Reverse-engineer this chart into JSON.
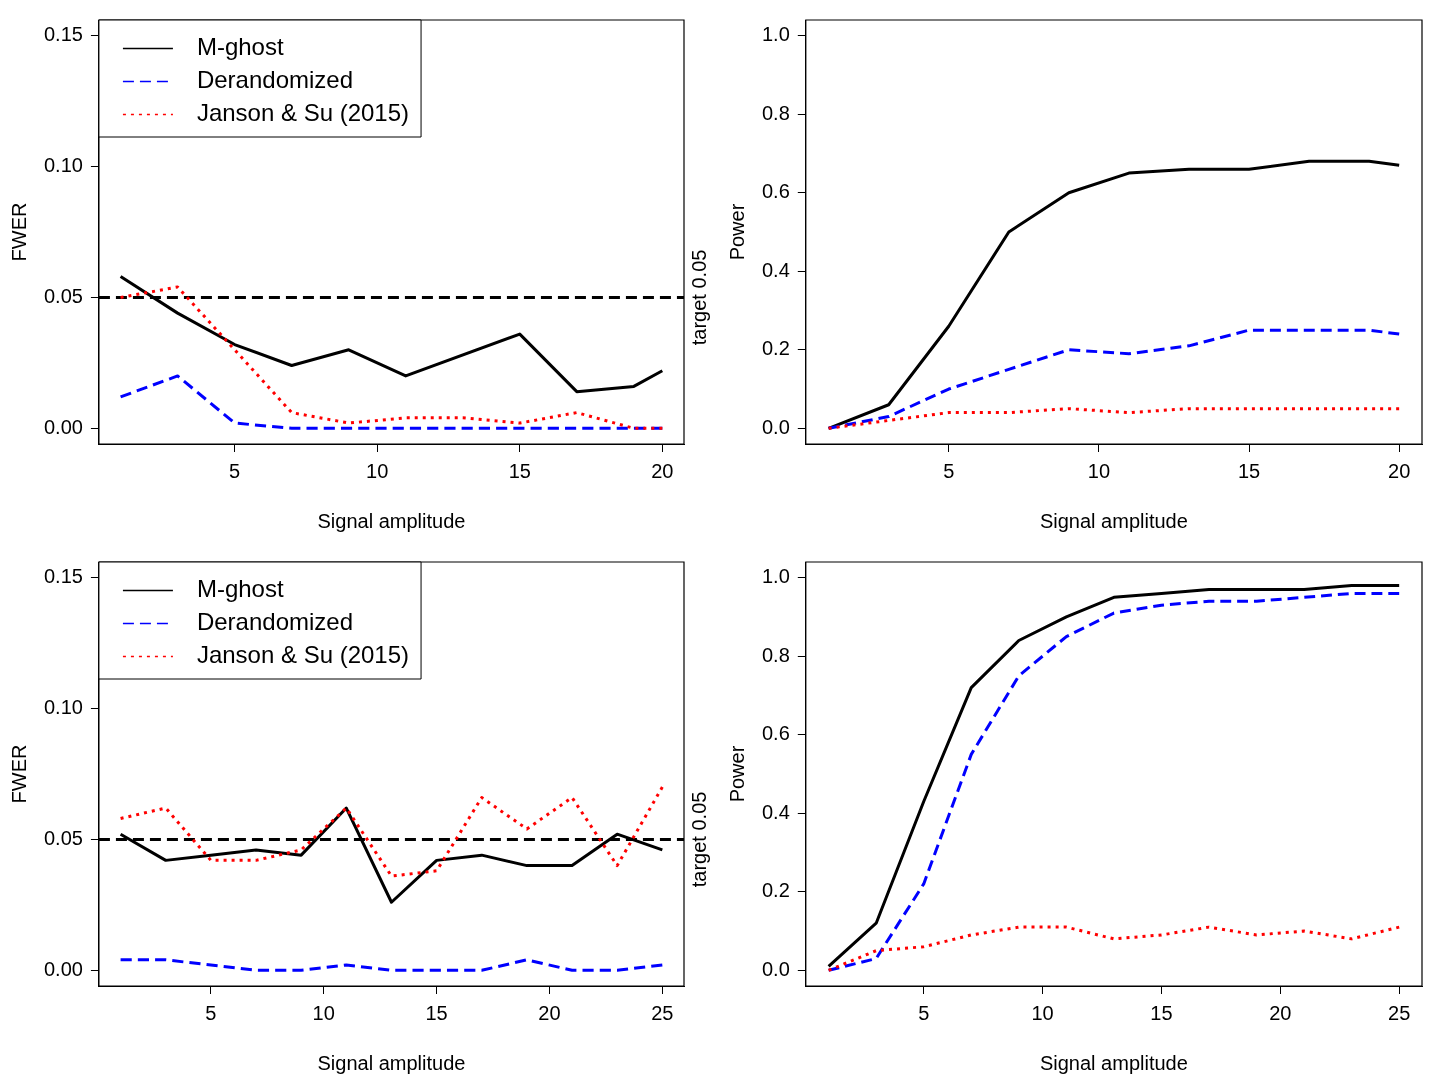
{
  "chart_data": [
    {
      "type": "line",
      "xlabel": "Signal amplitude",
      "ylabel": "FWER",
      "legend": "top left",
      "marker": "none",
      "xlim": [
        0.24,
        20.76
      ],
      "xticks": [
        5,
        10,
        15,
        20
      ],
      "ylim": [
        -0.006,
        0.156
      ],
      "yticks": [
        {
          "value": 0,
          "label": "0.00"
        },
        {
          "value": 0.05,
          "label": "0.05"
        },
        {
          "value": 0.1,
          "label": "0.10"
        },
        {
          "value": 0.15,
          "label": "0.15"
        }
      ],
      "ref_lines": [
        {
          "axis": "y",
          "value": 0.05,
          "label": "target 0.05",
          "color": "#000000",
          "line_style": "dashed"
        }
      ],
      "series": [
        {
          "name": "M-ghost",
          "color": "#000000",
          "line_style": "solid",
          "x": [
            1,
            3,
            5,
            7,
            9,
            11,
            15,
            17,
            19,
            20
          ],
          "values": [
            0.058,
            0.044,
            0.032,
            0.024,
            0.03,
            0.02,
            0.036,
            0.014,
            0.016,
            0.022
          ]
        },
        {
          "name": "Derandomized",
          "color": "#0000ff",
          "line_style": "dashed",
          "x": [
            1,
            3,
            5,
            7,
            9,
            11,
            13,
            15,
            17,
            19,
            20
          ],
          "values": [
            0.012,
            0.02,
            0.002,
            0,
            0,
            0,
            0,
            0,
            0,
            0,
            0
          ]
        },
        {
          "name": "Janson & Su (2015)",
          "color": "#ff0000",
          "line_style": "dotted",
          "x": [
            1,
            3,
            5,
            7,
            9,
            11,
            13,
            15,
            17,
            19,
            20
          ],
          "values": [
            0.05,
            0.054,
            0.03,
            0.006,
            0.002,
            0.004,
            0.004,
            0.002,
            0.006,
            0,
            0
          ]
        }
      ]
    },
    {
      "type": "line",
      "xlabel": "Signal amplitude",
      "ylabel": "Power",
      "marker": "none",
      "xlim": [
        0.24,
        20.76
      ],
      "xticks": [
        5,
        10,
        15,
        20
      ],
      "ylim": [
        -0.04,
        1.04
      ],
      "yticks": [
        {
          "value": 0,
          "label": "0.0"
        },
        {
          "value": 0.2,
          "label": "0.2"
        },
        {
          "value": 0.4,
          "label": "0.4"
        },
        {
          "value": 0.6,
          "label": "0.6"
        },
        {
          "value": 0.8,
          "label": "0.8"
        },
        {
          "value": 1,
          "label": "1.0"
        }
      ],
      "series": [
        {
          "color": "#000000",
          "line_style": "solid",
          "x": [
            1,
            3,
            5,
            7,
            9,
            11,
            13,
            15,
            17,
            19,
            20
          ],
          "values": [
            0,
            0.06,
            0.26,
            0.5,
            0.6,
            0.65,
            0.66,
            0.66,
            0.68,
            0.68,
            0.67
          ]
        },
        {
          "color": "#0000ff",
          "line_style": "dashed",
          "x": [
            1,
            3,
            5,
            7,
            9,
            11,
            13,
            15,
            17,
            19,
            20
          ],
          "values": [
            0,
            0.03,
            0.1,
            0.15,
            0.2,
            0.19,
            0.21,
            0.25,
            0.25,
            0.25,
            0.24
          ]
        },
        {
          "color": "#ff0000",
          "line_style": "dotted",
          "x": [
            1,
            3,
            5,
            7,
            9,
            11,
            13,
            15,
            17,
            19,
            20
          ],
          "values": [
            0,
            0.02,
            0.04,
            0.04,
            0.05,
            0.04,
            0.05,
            0.05,
            0.05,
            0.05,
            0.05
          ]
        }
      ]
    },
    {
      "type": "line",
      "xlabel": "Signal amplitude",
      "ylabel": "FWER",
      "legend": "top left",
      "marker": "none",
      "xlim": [
        0.04,
        25.96
      ],
      "xticks": [
        5,
        10,
        15,
        20,
        25
      ],
      "ylim": [
        -0.006,
        0.156
      ],
      "yticks": [
        {
          "value": 0,
          "label": "0.00"
        },
        {
          "value": 0.05,
          "label": "0.05"
        },
        {
          "value": 0.1,
          "label": "0.10"
        },
        {
          "value": 0.15,
          "label": "0.15"
        }
      ],
      "ref_lines": [
        {
          "axis": "y",
          "value": 0.05,
          "label": "target 0.05",
          "color": "#000000",
          "line_style": "dashed"
        }
      ],
      "series": [
        {
          "name": "M-ghost",
          "color": "#000000",
          "line_style": "solid",
          "x": [
            1,
            3,
            5,
            7,
            9,
            11,
            13,
            15,
            17,
            19,
            21,
            23,
            25
          ],
          "values": [
            0.052,
            0.042,
            0.044,
            0.046,
            0.044,
            0.062,
            0.026,
            0.042,
            0.044,
            0.04,
            0.04,
            0.052,
            0.046
          ]
        },
        {
          "name": "Derandomized",
          "color": "#0000ff",
          "line_style": "dashed",
          "x": [
            1,
            3,
            5,
            7,
            9,
            11,
            13,
            15,
            17,
            19,
            21,
            23,
            25
          ],
          "values": [
            0.004,
            0.004,
            0.002,
            0,
            0,
            0.002,
            0,
            0,
            0,
            0.004,
            0,
            0,
            0.002
          ]
        },
        {
          "name": "Janson & Su (2015)",
          "color": "#ff0000",
          "line_style": "dotted",
          "x": [
            1,
            3,
            5,
            7,
            9,
            11,
            13,
            15,
            17,
            19,
            21,
            23,
            25
          ],
          "values": [
            0.058,
            0.062,
            0.042,
            0.042,
            0.046,
            0.062,
            0.036,
            0.038,
            0.066,
            0.054,
            0.066,
            0.04,
            0.07
          ]
        }
      ]
    },
    {
      "type": "line",
      "xlabel": "Signal amplitude",
      "ylabel": "Power",
      "marker": "none",
      "xlim": [
        0.04,
        25.96
      ],
      "xticks": [
        5,
        10,
        15,
        20,
        25
      ],
      "ylim": [
        -0.04,
        1.04
      ],
      "yticks": [
        {
          "value": 0,
          "label": "0.0"
        },
        {
          "value": 0.2,
          "label": "0.2"
        },
        {
          "value": 0.4,
          "label": "0.4"
        },
        {
          "value": 0.6,
          "label": "0.6"
        },
        {
          "value": 0.8,
          "label": "0.8"
        },
        {
          "value": 1,
          "label": "1.0"
        }
      ],
      "series": [
        {
          "color": "#000000",
          "line_style": "solid",
          "x": [
            1,
            3,
            5,
            7,
            9,
            11,
            13,
            15,
            17,
            19,
            21,
            23,
            25
          ],
          "values": [
            0.01,
            0.12,
            0.43,
            0.72,
            0.84,
            0.9,
            0.95,
            0.96,
            0.97,
            0.97,
            0.97,
            0.98,
            0.98
          ]
        },
        {
          "color": "#0000ff",
          "line_style": "dashed",
          "x": [
            1,
            3,
            5,
            7,
            9,
            11,
            13,
            15,
            17,
            19,
            21,
            23,
            25
          ],
          "values": [
            0,
            0.03,
            0.22,
            0.55,
            0.75,
            0.85,
            0.91,
            0.93,
            0.94,
            0.94,
            0.95,
            0.96,
            0.96
          ]
        },
        {
          "color": "#ff0000",
          "line_style": "dotted",
          "x": [
            1,
            3,
            5,
            7,
            9,
            11,
            13,
            15,
            17,
            19,
            21,
            23,
            25
          ],
          "values": [
            0,
            0.05,
            0.06,
            0.09,
            0.11,
            0.11,
            0.08,
            0.09,
            0.11,
            0.09,
            0.1,
            0.08,
            0.11
          ]
        }
      ]
    }
  ]
}
